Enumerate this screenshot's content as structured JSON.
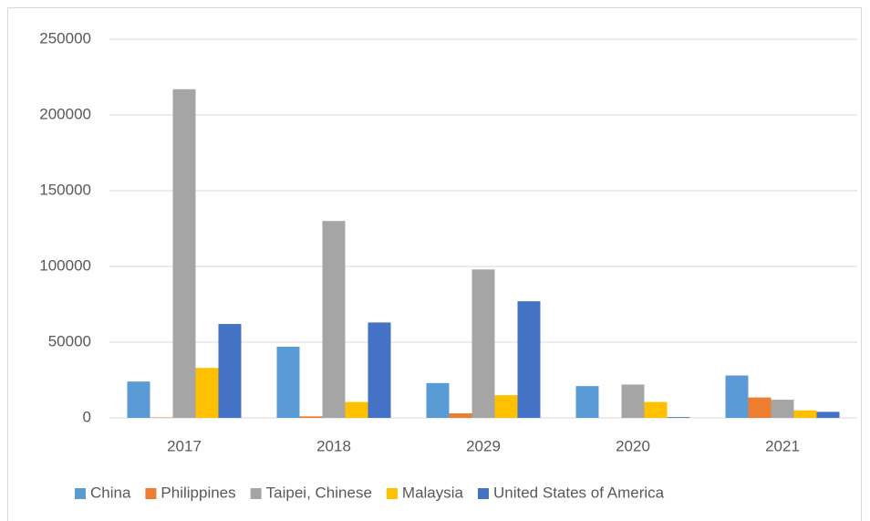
{
  "chart_data": {
    "type": "bar",
    "categories": [
      "2017",
      "2018",
      "2029",
      "2020",
      "2021"
    ],
    "series": [
      {
        "name": "China",
        "color": "#5b9bd5",
        "values": [
          24000,
          47000,
          23000,
          21000,
          28000
        ]
      },
      {
        "name": "Philippines",
        "color": "#ed7d31",
        "values": [
          300,
          1000,
          3000,
          0,
          13500
        ]
      },
      {
        "name": "Taipei, Chinese",
        "color": "#a5a5a5",
        "values": [
          217000,
          130000,
          98000,
          22000,
          12000
        ]
      },
      {
        "name": "Malaysia",
        "color": "#ffc000",
        "values": [
          33000,
          10500,
          15000,
          10500,
          5000
        ]
      },
      {
        "name": "United States of America",
        "color": "#4472c4",
        "values": [
          62000,
          63000,
          77000,
          500,
          4000
        ]
      }
    ],
    "ylim": [
      0,
      250000
    ],
    "yticks": [
      0,
      50000,
      100000,
      150000,
      200000,
      250000
    ],
    "grid": true,
    "legend": "bottom"
  }
}
